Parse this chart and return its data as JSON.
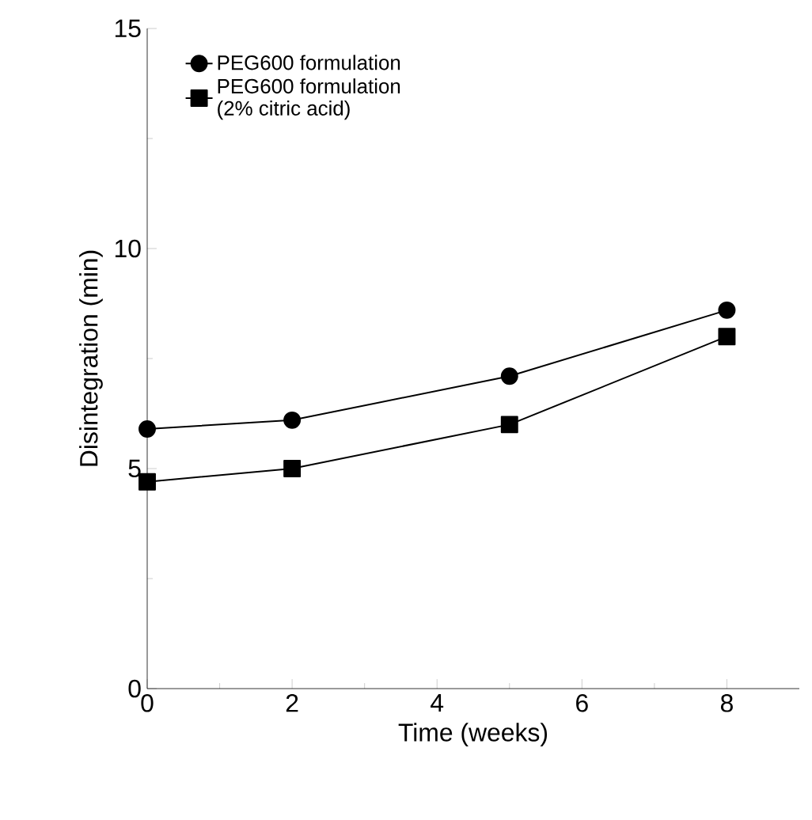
{
  "chart_data": {
    "type": "line",
    "xlabel": "Time (weeks)",
    "ylabel": "Disintegration (min)",
    "xlim": [
      0,
      9
    ],
    "ylim": [
      0,
      15
    ],
    "xticks": [
      0,
      2,
      4,
      6,
      8
    ],
    "yticks": [
      0,
      5,
      10,
      15
    ],
    "legend": "top left",
    "grid": false,
    "series": [
      {
        "name": "PEG600 formulation",
        "color": "#000000",
        "marker": "circle",
        "x": [
          0,
          2,
          5,
          8
        ],
        "values": [
          5.9,
          6.1,
          7.1,
          8.6
        ]
      },
      {
        "name": "PEG600 formulation\n(2% citric acid)",
        "color": "#000000",
        "marker": "square",
        "x": [
          0,
          2,
          5,
          8
        ],
        "values": [
          4.7,
          5.0,
          6.0,
          8.0
        ]
      }
    ]
  }
}
